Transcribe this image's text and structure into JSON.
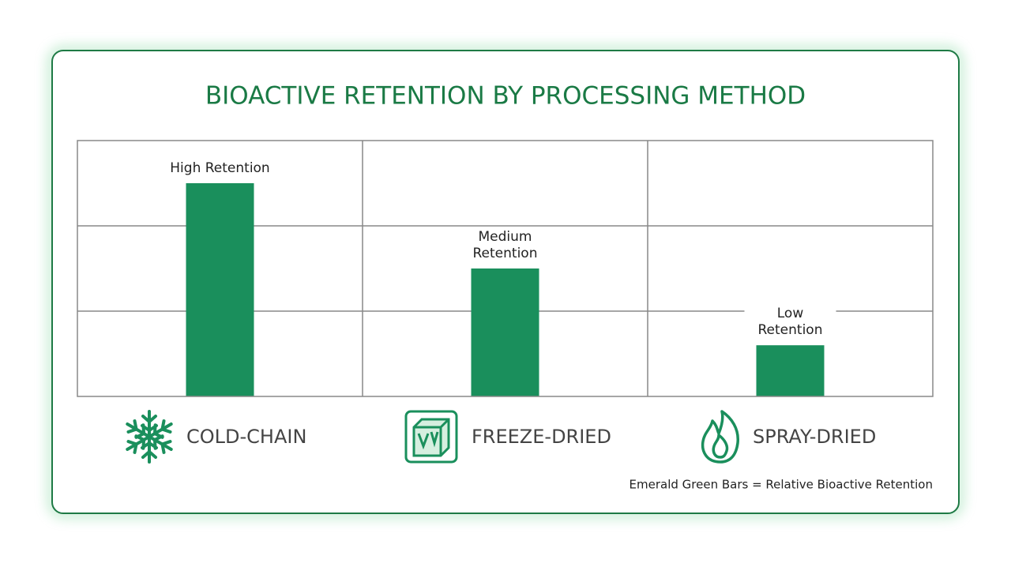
{
  "chart_data": {
    "type": "bar",
    "title": "BIOACTIVE RETENTION BY PROCESSING METHOD",
    "categories": [
      "COLD-CHAIN",
      "FREEZE-DRIED",
      "SPRAY-DRIED"
    ],
    "values": [
      2.5,
      1.5,
      0.6
    ],
    "value_labels": [
      "High Retention",
      "Medium\nRetention",
      "Low\nRetention"
    ],
    "color": "#1a8f5c",
    "ylim": [
      0,
      3
    ],
    "yticks": [
      1,
      2
    ],
    "grid": true,
    "note": "Emerald Green Bars = Relative Bioactive Retention"
  }
}
